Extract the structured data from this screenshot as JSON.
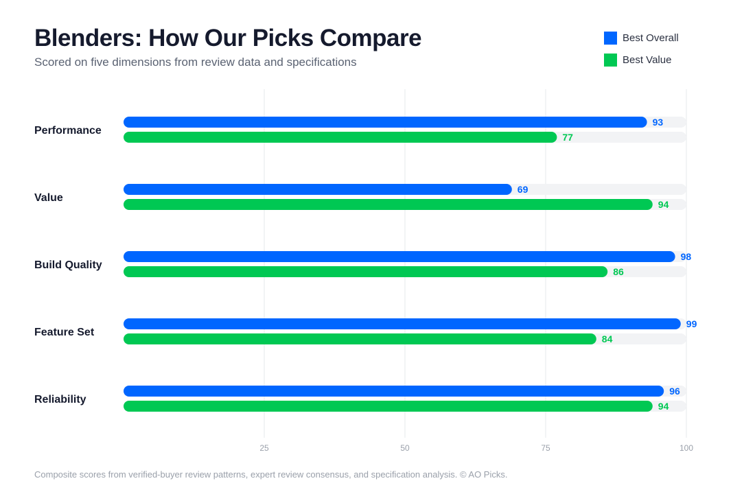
{
  "header": {
    "title": "Blenders: How Our Picks Compare",
    "subtitle": "Scored on five dimensions from review data and specifications"
  },
  "legend": [
    {
      "label": "Best Overall",
      "color": "#0066ff"
    },
    {
      "label": "Best Value",
      "color": "#00c853"
    }
  ],
  "footnote": "Composite scores from verified-buyer review patterns, expert review consensus, and specification analysis. © AO Picks.",
  "colors": {
    "track": "#f2f3f5",
    "grid": "#e6e8eb",
    "tick_label": "#9aa0aa",
    "category_label": "#151a2d"
  },
  "chart_data": {
    "type": "bar",
    "orientation": "horizontal",
    "categories": [
      "Performance",
      "Value",
      "Build Quality",
      "Feature Set",
      "Reliability"
    ],
    "series": [
      {
        "name": "Best Overall",
        "values": [
          93,
          69,
          98,
          99,
          96
        ]
      },
      {
        "name": "Best Value",
        "values": [
          77,
          94,
          86,
          84,
          94
        ]
      }
    ],
    "xlim": [
      0,
      100
    ],
    "xticks": [
      25,
      50,
      75,
      100
    ],
    "grid": true,
    "legend_position": "top-right",
    "title": "Blenders: How Our Picks Compare",
    "subtitle": "Scored on five dimensions from review data and specifications",
    "xlabel": "",
    "ylabel": ""
  }
}
